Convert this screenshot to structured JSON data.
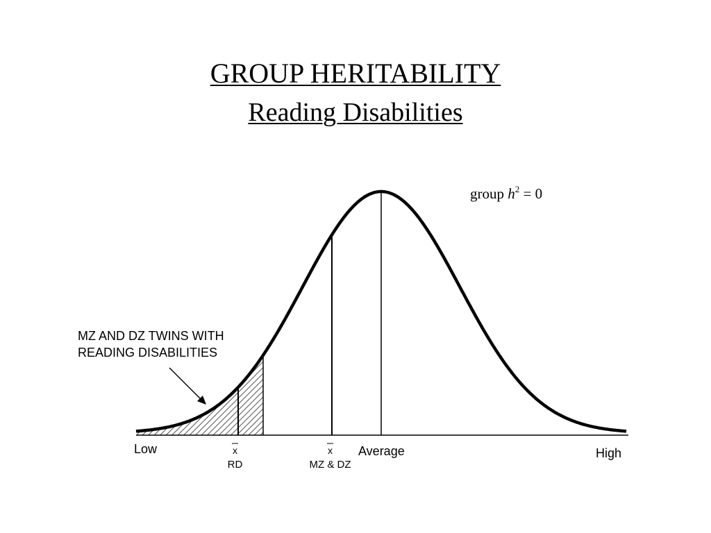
{
  "slide": {
    "title": "GROUP HERITABILITY",
    "subtitle": "Reading Disabilities"
  },
  "diagram": {
    "annotation": {
      "prefix": "group ",
      "variable": "h",
      "superscript": "2",
      "suffix": " = 0"
    },
    "callout": {
      "line1": "MZ AND DZ TWINS WITH",
      "line2": "READING DISABILITIES"
    },
    "axis": {
      "low": "Low",
      "average": "Average",
      "high": "High"
    },
    "markers": [
      {
        "symbol": "x",
        "label": "RD"
      },
      {
        "symbol": "x",
        "label": "MZ & DZ"
      }
    ],
    "colors": {
      "ink": "#000000",
      "background": "#ffffff"
    }
  }
}
